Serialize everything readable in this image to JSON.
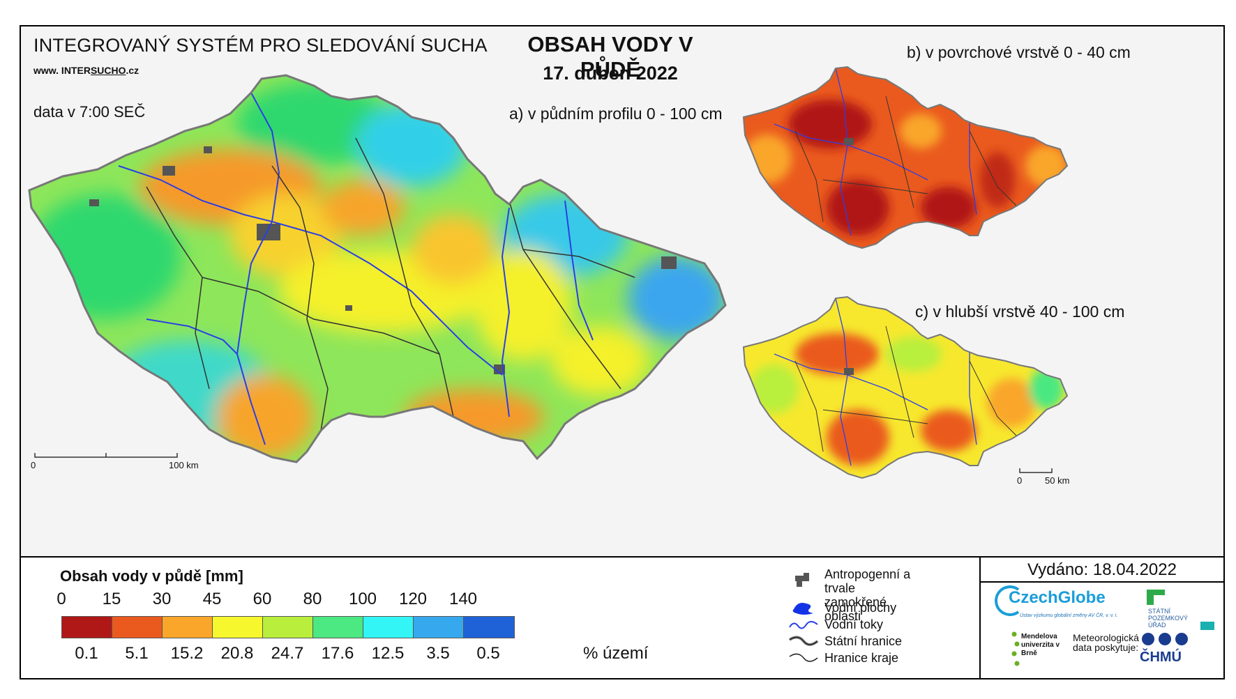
{
  "header": {
    "system_title": "INTEGROVANÝ SYSTÉM PRO SLEDOVÁNÍ SUCHA",
    "url_prefix": "www. INTER",
    "url_mid": "SUCHO",
    "url_suffix": ".cz",
    "data_time": "data v 7:00 SEČ",
    "main_title": "OBSAH VODY V PŮDĚ",
    "date": "17. duben 2022"
  },
  "maps": {
    "a_label": "a) v půdním profilu 0 - 100 cm",
    "b_label": "b) v povrchové vrstvě 0 - 40 cm",
    "c_label": "c) v hlubší vrstvě 40 - 100 cm"
  },
  "scales": {
    "main_start": "0",
    "main_end": "100 km",
    "small_start": "0",
    "small_end": "50 km"
  },
  "legend": {
    "title": "Obsah vody v půdě  [mm]",
    "thresholds_mm": [
      "0",
      "15",
      "30",
      "45",
      "60",
      "80",
      "100",
      "120",
      "140"
    ],
    "classes": [
      {
        "color": "#b01818",
        "pct": "0.1"
      },
      {
        "color": "#ea5a1e",
        "pct": "5.1"
      },
      {
        "color": "#f9a62b",
        "pct": "15.2"
      },
      {
        "color": "#f7f72e",
        "pct": "20.8"
      },
      {
        "color": "#b9ef3c",
        "pct": "24.7"
      },
      {
        "color": "#4ce882",
        "pct": "17.6"
      },
      {
        "color": "#33f5f5",
        "pct": "12.5"
      },
      {
        "color": "#36a9ee",
        "pct": "3.5"
      },
      {
        "color": "#1f62d8",
        "pct": "0.5"
      }
    ],
    "pct_label": "% území"
  },
  "symbols": {
    "anthropogenic": "Antropogenní a trvale zamokřené oblasti",
    "water_bodies": "Vodní plochy",
    "rivers": "Vodní toky",
    "state_border": "Státní hranice",
    "region_border": "Hranice kraje"
  },
  "issued": "Vydáno: 18.04.2022",
  "logos": {
    "czechglobe": "CzechGlobe",
    "czechglobe_sub": "Ústav výzkumu globální změny AV ČR, v. v. i.",
    "spu": "STÁTNÍ POZEMKOVÝ ÚŘAD",
    "mendel": "Mendelova univerzita v Brně",
    "met": "Meteorologická data poskytuje:",
    "chmu": "ČHMÚ"
  },
  "colors": {
    "river": "#2a3fe6",
    "border": "#333333",
    "urban": "#555555",
    "background": "#f4f4f4"
  }
}
